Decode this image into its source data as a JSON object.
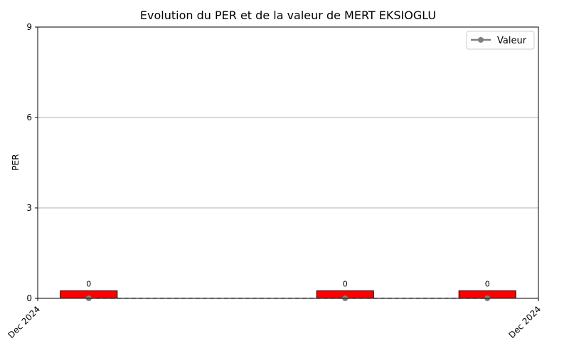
{
  "chart_data": {
    "type": "bar",
    "title": "Evolution du PER et de la valeur de MERT EKSIOGLU",
    "ylabel": "PER",
    "xlabel": "",
    "ylim": [
      0,
      9
    ],
    "yticks": [
      0,
      3,
      6,
      9
    ],
    "grid": "y",
    "x_tick_labels": [
      "Dec 2024",
      "Dec 2024"
    ],
    "legend": {
      "placement": "top-right",
      "entries": [
        "Valeur"
      ]
    },
    "bars": {
      "name": "PER",
      "color": "#ff0000",
      "values": [
        0,
        0,
        0
      ],
      "labels": [
        "0",
        "0",
        "0"
      ]
    },
    "series": [
      {
        "name": "Valeur",
        "type": "line",
        "color": "#808080",
        "values": [
          0,
          0,
          0
        ]
      }
    ]
  }
}
